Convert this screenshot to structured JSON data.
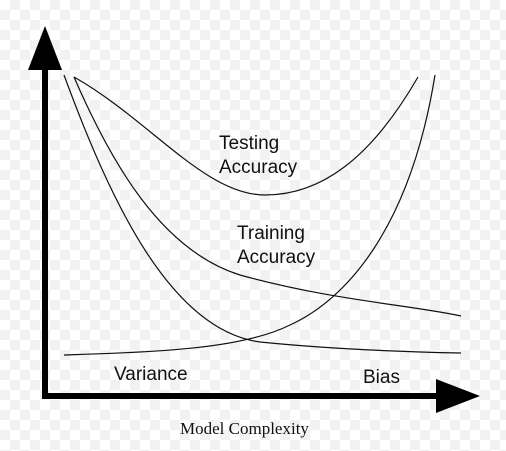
{
  "labels": {
    "testing_line1": "Testing",
    "testing_line2": "Accuracy",
    "training_line1": "Training",
    "training_line2": "Accuracy",
    "variance": "Variance",
    "bias": "Bias",
    "x_axis_title": "Model Complexity"
  },
  "colors": {
    "curve": "#111111",
    "axis": "#000000"
  }
}
